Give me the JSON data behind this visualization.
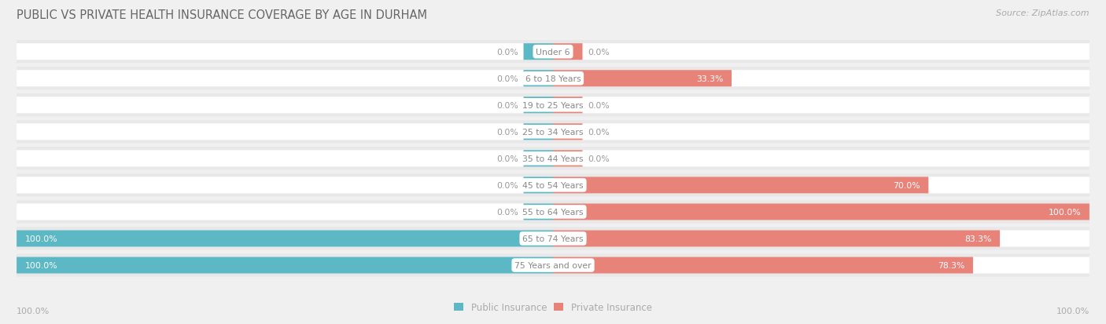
{
  "title": "PUBLIC VS PRIVATE HEALTH INSURANCE COVERAGE BY AGE IN DURHAM",
  "source": "Source: ZipAtlas.com",
  "categories": [
    "Under 6",
    "6 to 18 Years",
    "19 to 25 Years",
    "25 to 34 Years",
    "35 to 44 Years",
    "45 to 54 Years",
    "55 to 64 Years",
    "65 to 74 Years",
    "75 Years and over"
  ],
  "public_values": [
    0.0,
    0.0,
    0.0,
    0.0,
    0.0,
    0.0,
    0.0,
    100.0,
    100.0
  ],
  "private_values": [
    0.0,
    33.3,
    0.0,
    0.0,
    0.0,
    70.0,
    100.0,
    83.3,
    78.3
  ],
  "public_color": "#5bb8c4",
  "private_color": "#e8837a",
  "bg_color": "#f0f0f0",
  "bar_bg_color": "#ffffff",
  "row_bg_color": "#e8e8e8",
  "label_color_white": "#ffffff",
  "label_color_dark": "#999999",
  "title_color": "#666666",
  "source_color": "#aaaaaa",
  "center_label_color": "#888888",
  "axis_label_color": "#aaaaaa",
  "bar_height": 0.62,
  "min_bar": 5.5,
  "max_val": 100.0,
  "legend_labels": [
    "Public Insurance",
    "Private Insurance"
  ],
  "axis_left_label": "100.0%",
  "axis_right_label": "100.0%"
}
